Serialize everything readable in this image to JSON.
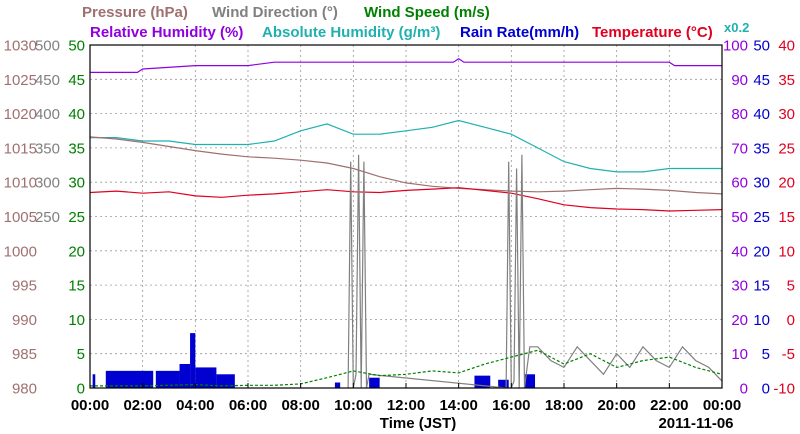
{
  "chart_data": {
    "type": "line",
    "date_label": "2011-11-06",
    "xlabel": "Time (JST)",
    "x_ticks": [
      "00:00",
      "02:00",
      "04:00",
      "06:00",
      "08:00",
      "10:00",
      "12:00",
      "14:00",
      "16:00",
      "18:00",
      "20:00",
      "22:00",
      "00:00"
    ],
    "x_range_hours": [
      0,
      24
    ],
    "legend": [
      {
        "label": "Pressure (hPa)",
        "color": "#a07070"
      },
      {
        "label": "Wind Direction (°)",
        "color": "#808080"
      },
      {
        "label": "Wind Speed (m/s)",
        "color": "#008000"
      },
      {
        "label": "Relative Humidity (%)",
        "color": "#9000e0"
      },
      {
        "label": "Absolute Humidity (g/m³)",
        "color": "#20b0b0"
      },
      {
        "label": "Rain Rate(mm/h)",
        "color": "#0000d0"
      },
      {
        "label": "Temperature (°C)",
        "color": "#e00020"
      }
    ],
    "multiplier_label": "x0.2",
    "axes": {
      "pressure": {
        "side": "left",
        "color": "#a07070",
        "range": [
          980,
          1030
        ],
        "ticks": [
          "980",
          "985",
          "990",
          "995",
          "1000",
          "1005",
          "1010",
          "1015",
          "1020",
          "1025",
          "1030"
        ]
      },
      "wind_direction": {
        "side": "left",
        "color": "#808080",
        "range": [
          0,
          500
        ],
        "ticks": [
          "250",
          "300",
          "350",
          "400",
          "450",
          "500"
        ]
      },
      "wind_speed": {
        "side": "left",
        "color": "#008000",
        "range": [
          0,
          50
        ],
        "ticks": [
          "0",
          "5",
          "10",
          "15",
          "20",
          "25",
          "30",
          "35",
          "40",
          "45",
          "50"
        ]
      },
      "humidity": {
        "side": "right",
        "color": "#9000e0",
        "range": [
          0,
          100
        ],
        "ticks": [
          "0",
          "10",
          "20",
          "30",
          "40",
          "50",
          "60",
          "70",
          "80",
          "90",
          "100"
        ]
      },
      "rain_rate": {
        "side": "right",
        "color": "#0000d0",
        "range": [
          0,
          50
        ],
        "ticks": [
          "0",
          "5",
          "10",
          "15",
          "20",
          "25",
          "30",
          "35",
          "40",
          "45",
          "50"
        ]
      },
      "temperature": {
        "side": "right",
        "color": "#e00020",
        "range": [
          -10,
          40
        ],
        "ticks": [
          "-10",
          "-5",
          "0",
          "5",
          "10",
          "15",
          "20",
          "25",
          "30",
          "35",
          "40"
        ]
      }
    },
    "series": [
      {
        "name": "Relative Humidity",
        "axis": "humidity",
        "color": "#9000e0",
        "x": [
          0,
          1.8,
          2,
          4,
          6,
          7,
          10,
          12,
          13.8,
          14,
          14.2,
          15,
          16,
          18,
          20,
          22,
          22.2,
          24
        ],
        "y": [
          92,
          92,
          93,
          94,
          94,
          95,
          95,
          95,
          95,
          96,
          95,
          95,
          95,
          95,
          95,
          95,
          94,
          94
        ]
      },
      {
        "name": "Absolute Humidity",
        "axis": "humidity",
        "color": "#20b0b0",
        "x": [
          0,
          1,
          2,
          3,
          4,
          5,
          6,
          7,
          8,
          9,
          10,
          11,
          12,
          13,
          14,
          15,
          16,
          17,
          18,
          19,
          20,
          21,
          22,
          23,
          24
        ],
        "y": [
          73,
          73,
          72,
          72,
          71,
          71,
          71,
          72,
          75,
          77,
          74,
          74,
          75,
          76,
          78,
          76,
          74,
          70,
          66,
          64,
          63,
          63,
          64,
          64,
          64
        ]
      },
      {
        "name": "Pressure",
        "axis": "pressure",
        "color": "#a07070",
        "x": [
          0,
          1,
          2,
          3,
          4,
          5,
          6,
          7,
          8,
          9,
          10,
          11,
          12,
          13,
          14,
          15,
          16,
          17,
          18,
          19,
          20,
          21,
          22,
          23,
          24
        ],
        "y": [
          1016.6,
          1016.3,
          1015.8,
          1015.2,
          1014.6,
          1014.1,
          1013.7,
          1013.5,
          1013.2,
          1012.8,
          1012.0,
          1010.8,
          1009.9,
          1009.4,
          1009.1,
          1008.9,
          1008.7,
          1008.6,
          1008.7,
          1008.9,
          1009.1,
          1009.0,
          1008.8,
          1008.5,
          1008.3
        ]
      },
      {
        "name": "Temperature",
        "axis": "temperature",
        "color": "#e00020",
        "x": [
          0,
          1,
          2,
          3,
          4,
          5,
          6,
          7,
          8,
          9,
          10,
          11,
          12,
          13,
          14,
          15,
          16,
          17,
          18,
          19,
          20,
          21,
          22,
          23,
          24
        ],
        "y": [
          18.5,
          18.7,
          18.4,
          18.6,
          18.0,
          17.8,
          18.1,
          18.3,
          18.6,
          18.9,
          18.6,
          18.5,
          18.8,
          19.0,
          19.2,
          18.8,
          18.4,
          17.6,
          16.7,
          16.3,
          16.1,
          16.0,
          15.8,
          15.9,
          16.0
        ]
      },
      {
        "name": "Wind Direction",
        "axis": "wind_direction",
        "color": "#808080",
        "x": [
          9.8,
          9.9,
          10.0,
          10.1,
          10.2,
          10.3,
          10.4,
          10.5,
          10.6,
          15.8,
          15.9,
          16.0,
          16.1,
          16.2,
          16.3,
          16.4,
          16.5,
          16.6,
          16.7,
          17.0,
          17.5,
          18.0,
          18.5,
          19.0,
          19.5,
          20.0,
          20.5,
          21.0,
          21.5,
          22.0,
          22.5,
          23.0,
          23.5,
          24.0
        ],
        "y": [
          0,
          330,
          0,
          20,
          340,
          0,
          330,
          0,
          20,
          0,
          330,
          0,
          10,
          320,
          0,
          340,
          0,
          30,
          60,
          60,
          40,
          30,
          60,
          40,
          20,
          50,
          30,
          60,
          40,
          30,
          60,
          40,
          30,
          10
        ]
      },
      {
        "name": "Wind Speed",
        "axis": "wind_speed",
        "color": "#008000",
        "x": [
          0,
          1,
          2,
          3,
          4,
          5,
          6,
          7,
          8,
          9,
          10,
          11,
          12,
          13,
          14,
          15,
          16,
          17,
          18,
          19,
          20,
          21,
          22,
          23,
          24
        ],
        "y": [
          0.3,
          0.3,
          0.3,
          0.4,
          0.5,
          0.3,
          0.4,
          0.4,
          0.6,
          1.5,
          2.5,
          1.8,
          2,
          2.5,
          2.2,
          3.5,
          4.5,
          5.5,
          3.5,
          5,
          3,
          4,
          4.5,
          3,
          2
        ]
      }
    ],
    "rain_blocks": [
      {
        "start": 0.1,
        "end": 0.2,
        "height": 2
      },
      {
        "start": 0.6,
        "end": 2.4,
        "height": 2.5
      },
      {
        "start": 2.5,
        "end": 3.4,
        "height": 2.5
      },
      {
        "start": 3.4,
        "end": 3.8,
        "height": 3.5
      },
      {
        "start": 3.8,
        "end": 4.0,
        "height": 8
      },
      {
        "start": 4.0,
        "end": 4.8,
        "height": 3
      },
      {
        "start": 4.8,
        "end": 5.5,
        "height": 2
      },
      {
        "start": 9.3,
        "end": 9.5,
        "height": 0.8
      },
      {
        "start": 10.6,
        "end": 11.0,
        "height": 1.5
      },
      {
        "start": 14.6,
        "end": 15.2,
        "height": 1.8
      },
      {
        "start": 15.5,
        "end": 15.9,
        "height": 1.2
      },
      {
        "start": 16.5,
        "end": 16.9,
        "height": 2
      }
    ]
  }
}
